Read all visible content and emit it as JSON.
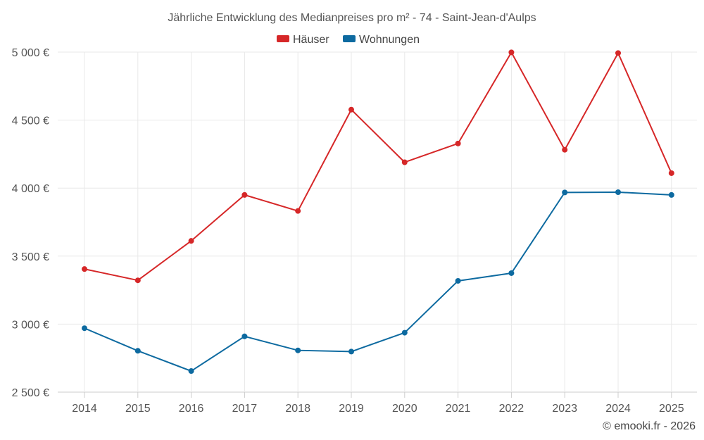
{
  "chart_data": {
    "type": "line",
    "title": "Jährliche Entwicklung des Medianpreises pro m² - 74 - Saint-Jean-d'Aulps",
    "xlabel": "",
    "ylabel": "",
    "categories": [
      "2014",
      "2015",
      "2016",
      "2017",
      "2018",
      "2019",
      "2020",
      "2021",
      "2022",
      "2023",
      "2024",
      "2025"
    ],
    "ylim": [
      2500,
      5000
    ],
    "yticks": [
      2500,
      3000,
      3500,
      4000,
      4500,
      5000
    ],
    "ytick_labels": [
      "2 500 €",
      "3 000 €",
      "3 500 €",
      "4 000 €",
      "4 500 €",
      "5 000 €"
    ],
    "grid": true,
    "legend_position": "top-center",
    "series": [
      {
        "name": "Häuser",
        "color": "#d62728",
        "values": [
          3405,
          3322,
          3612,
          3950,
          3832,
          4577,
          4190,
          4328,
          4998,
          4282,
          4993,
          4110
        ]
      },
      {
        "name": "Wohnungen",
        "color": "#0d6aa0",
        "values": [
          2970,
          2804,
          2655,
          2910,
          2807,
          2798,
          2937,
          3318,
          3375,
          3968,
          3970,
          3950
        ]
      }
    ]
  },
  "credit": "© emooki.fr - 2026"
}
